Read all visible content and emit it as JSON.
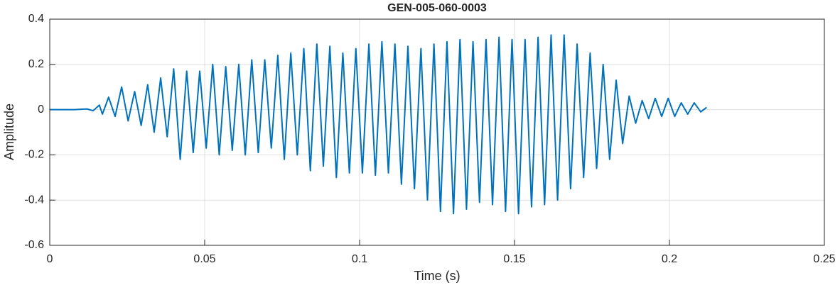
{
  "chart_data": {
    "type": "line",
    "title": "GEN-005-060-0003",
    "x_label": "Time (s)",
    "y_label": "Amplitude",
    "xlim": [
      0,
      0.25
    ],
    "xticks": [
      0,
      0.05,
      0.1,
      0.15,
      0.2,
      0.25
    ],
    "ylim": [
      -0.6,
      0.4
    ],
    "yticks": [
      -0.6,
      -0.4,
      -0.2,
      0,
      0.2,
      0.4
    ],
    "grid": true,
    "x": [
      0,
      0.008,
      0.012,
      0.014,
      0.016,
      0.017,
      0.019,
      0.0211,
      0.0232,
      0.0253,
      0.0274,
      0.0295,
      0.0316,
      0.0337,
      0.0358,
      0.0379,
      0.04,
      0.0421,
      0.0442,
      0.0463,
      0.0484,
      0.0505,
      0.0526,
      0.0547,
      0.0568,
      0.0589,
      0.061,
      0.0631,
      0.0652,
      0.0673,
      0.0694,
      0.0715,
      0.0736,
      0.0757,
      0.0778,
      0.0799,
      0.082,
      0.0841,
      0.0862,
      0.0883,
      0.0904,
      0.0925,
      0.0946,
      0.0967,
      0.0988,
      0.1009,
      0.103,
      0.1051,
      0.1072,
      0.1093,
      0.1114,
      0.1135,
      0.1156,
      0.1177,
      0.1198,
      0.1219,
      0.124,
      0.1261,
      0.1282,
      0.1303,
      0.1324,
      0.1345,
      0.1366,
      0.1387,
      0.1408,
      0.1429,
      0.145,
      0.1471,
      0.1492,
      0.1513,
      0.1534,
      0.1555,
      0.1576,
      0.1597,
      0.1618,
      0.1639,
      0.166,
      0.1681,
      0.1702,
      0.1723,
      0.1744,
      0.1765,
      0.1786,
      0.1807,
      0.1828,
      0.1849,
      0.187,
      0.1891,
      0.1912,
      0.1933,
      0.1954,
      0.1975,
      0.1996,
      0.2017,
      0.2038,
      0.2059,
      0.208,
      0.2101,
      0.212
    ],
    "series": [
      {
        "color": "#0072bd",
        "values": [
          0,
          0,
          0.003,
          -0.005,
          0.02,
          -0.02,
          0.055,
          -0.03,
          0.1,
          -0.05,
          0.08,
          -0.07,
          0.11,
          -0.1,
          0.14,
          -0.12,
          0.18,
          -0.22,
          0.17,
          -0.19,
          0.17,
          -0.17,
          0.2,
          -0.2,
          0.19,
          -0.18,
          0.2,
          -0.2,
          0.22,
          -0.19,
          0.22,
          -0.17,
          0.24,
          -0.22,
          0.25,
          -0.2,
          0.27,
          -0.27,
          0.29,
          -0.25,
          0.28,
          -0.3,
          0.25,
          -0.28,
          0.27,
          -0.28,
          0.29,
          -0.29,
          0.3,
          -0.28,
          0.29,
          -0.33,
          0.28,
          -0.35,
          0.27,
          -0.4,
          0.29,
          -0.45,
          0.3,
          -0.46,
          0.31,
          -0.44,
          0.3,
          -0.41,
          0.31,
          -0.42,
          0.32,
          -0.45,
          0.31,
          -0.46,
          0.31,
          -0.43,
          0.32,
          -0.42,
          0.33,
          -0.4,
          0.33,
          -0.35,
          0.29,
          -0.3,
          0.25,
          -0.26,
          0.2,
          -0.22,
          0.13,
          -0.15,
          0.06,
          -0.06,
          0.04,
          -0.04,
          0.05,
          -0.03,
          0.05,
          -0.03,
          0.03,
          -0.02,
          0.03,
          -0.01,
          0.01
        ]
      }
    ]
  }
}
